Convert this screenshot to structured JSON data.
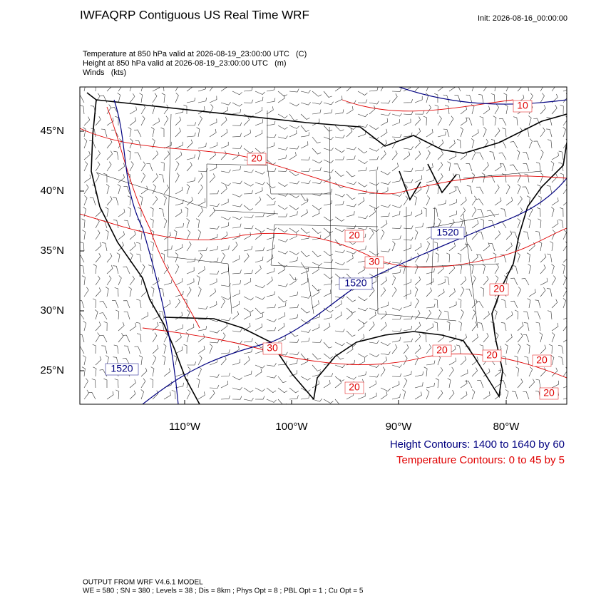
{
  "header": {
    "title": "IWFAQRP Contiguous US Real Time WRF",
    "init": "Init: 2026-08-16_00:00:00",
    "fields": [
      "Temperature at 850 hPa valid at 2026-08-19_23:00:00 UTC   (C)",
      "Height at 850 hPa valid at 2026-08-19_23:00:00 UTC   (m)",
      "Winds   (kts)"
    ]
  },
  "map": {
    "lat_labels": [
      "45°N",
      "40°N",
      "35°N",
      "30°N",
      "25°N"
    ],
    "lon_labels": [
      "110°W",
      "100°W",
      "90°W",
      "80°W"
    ],
    "contour_labels": [
      {
        "text": "10",
        "color": "#e00000"
      },
      {
        "text": "20",
        "color": "#e00000"
      },
      {
        "text": "20",
        "color": "#e00000"
      },
      {
        "text": "30",
        "color": "#e00000"
      },
      {
        "text": "1520",
        "color": "#000080"
      },
      {
        "text": "1520",
        "color": "#000080"
      },
      {
        "text": "20",
        "color": "#e00000"
      },
      {
        "text": "30",
        "color": "#e00000"
      },
      {
        "text": "20",
        "color": "#e00000"
      },
      {
        "text": "20",
        "color": "#e00000"
      },
      {
        "text": "20",
        "color": "#e00000"
      },
      {
        "text": "20",
        "color": "#e00000"
      },
      {
        "text": "20",
        "color": "#e00000"
      },
      {
        "text": "1520",
        "color": "#000080"
      }
    ]
  },
  "legend": [
    {
      "text": "Height Contours: 1400 to 1640 by 60",
      "color": "#000080"
    },
    {
      "text": "Temperature Contours: 0 to 45 by 5",
      "color": "#e00000"
    }
  ],
  "footer": [
    "OUTPUT FROM WRF V4.6.1 MODEL",
    "WE = 580 ; SN = 380 ; Levels = 38 ; Dis = 8km ; Phys Opt = 8 ; PBL Opt = 1 ; Cu Opt = 5"
  ]
}
